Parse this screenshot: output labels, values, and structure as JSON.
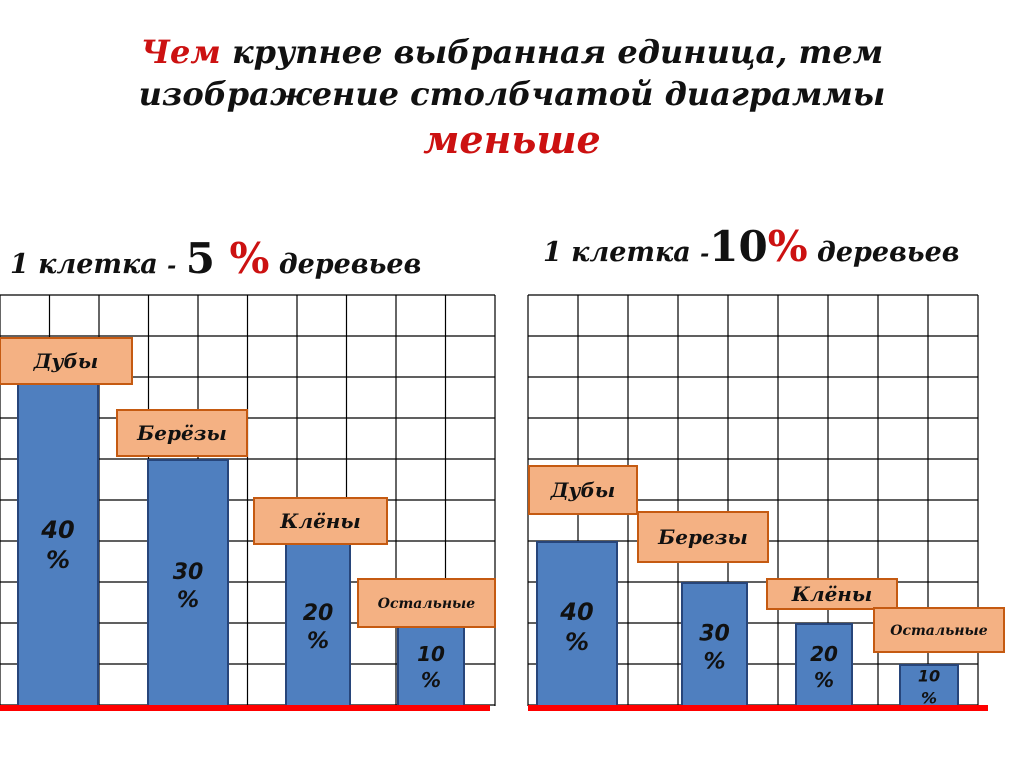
{
  "title": {
    "word_chem": "Чем",
    "line1_rest": " крупнее выбранная единица, тем",
    "line2": "изображение столбчатой диаграммы",
    "line3": "меньше"
  },
  "colors": {
    "bar": "#4f7fbf",
    "bar_border": "#27457a",
    "label_fill": "#f4b183",
    "label_border": "#c55a11",
    "baseline": "#ff0000",
    "grid": "#000000",
    "accent_red": "#cc1111"
  },
  "chart_data": [
    {
      "type": "bar",
      "caption": {
        "prefix": "1 клетка ",
        "dash": "-",
        "number": "5",
        "percent": " %",
        "suffix": " деревьев"
      },
      "cell_value": 5,
      "unit": "%",
      "categories": [
        "Дубы",
        "Берёзы",
        "Клёны",
        "Остальные"
      ],
      "values": [
        40,
        30,
        20,
        10
      ],
      "value_labels": [
        [
          "40",
          "%"
        ],
        [
          "30",
          "%"
        ],
        [
          "20",
          "%"
        ],
        [
          "10",
          "%"
        ]
      ],
      "ylim": [
        0,
        50
      ],
      "grid": true
    },
    {
      "type": "bar",
      "caption": {
        "prefix": "1 клетка ",
        "dash": "-",
        "number": "10",
        "percent": "%",
        "suffix": " деревьев"
      },
      "cell_value": 10,
      "unit": "%",
      "categories": [
        "Дубы",
        "Березы",
        "Клёны",
        "Остальные"
      ],
      "values": [
        40,
        30,
        20,
        10
      ],
      "value_labels": [
        [
          "40",
          "%"
        ],
        [
          "30",
          "%"
        ],
        [
          "20",
          "%"
        ],
        [
          "10",
          "%"
        ]
      ],
      "ylim": [
        0,
        100
      ],
      "grid": true
    }
  ]
}
